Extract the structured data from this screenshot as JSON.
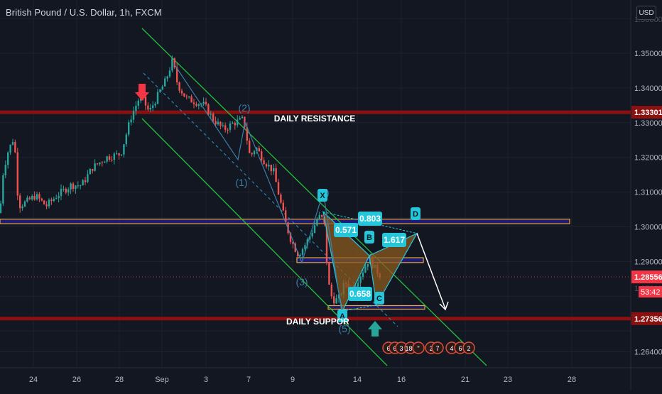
{
  "symbol_title": "British Pound / U.S. Dollar, 1h, FXCM",
  "currency": "USD",
  "colors": {
    "background": "#131722",
    "up": "#26a69a",
    "down": "#ef5350",
    "resistance_line": "#8b1111",
    "channel": "#21c33b",
    "pattern": "#26c6da",
    "zone_border": "#f0a830",
    "zone_fill": "#1d1d8a",
    "price_tag": "#f23645"
  },
  "chart_data": {
    "type": "candlestick",
    "y_axis": {
      "range": [
        1.2595,
        1.3595
      ],
      "scale": "linear",
      "tick_labels": [
        "1.35000",
        "1.34000",
        "1.33000",
        "1.32000",
        "1.31000",
        "1.30000",
        "1.29000",
        "1.26400"
      ],
      "partial_labels": [
        "1.36000",
        "1.27000",
        "1.28000"
      ]
    },
    "x_axis": {
      "tick_labels": [
        "24",
        "26",
        "28",
        "Sep",
        "3",
        "7",
        "9",
        "14",
        "16",
        "21",
        "23",
        "28"
      ]
    },
    "price_tags": [
      {
        "label": "1.33301",
        "value": 1.33301
      },
      {
        "label": "1.28556",
        "value": 1.28556,
        "sub": "53:42"
      },
      {
        "label": "1.27356",
        "value": 1.27356
      }
    ],
    "levels": [
      {
        "name": "DAILY RESISTANCE",
        "value": 1.33301
      },
      {
        "name": "DAILY SUPPORT",
        "value": 1.27356
      }
    ],
    "text_annotations": [
      {
        "text": "DAILY RESISTANCE"
      },
      {
        "text": "DAILY SUPPOR"
      }
    ],
    "wave_labels": [
      "(1)",
      "(2)",
      "(3)",
      "(4)",
      "(5)"
    ],
    "harmonic_points": [
      "X",
      "A",
      "B",
      "C",
      "D"
    ],
    "ratios": [
      "0.571",
      "0.803",
      "0.658",
      "1.617"
    ],
    "event_badges": [
      "6",
      "6",
      "3",
      "185",
      "\"",
      "2",
      "7",
      "4",
      "6",
      "2"
    ],
    "zones": [
      {
        "name": "resistance-zone",
        "from": 1.3009,
        "to": 1.3022
      },
      {
        "name": "mid-zone",
        "from": 1.2897,
        "to": 1.2911
      },
      {
        "name": "support-zone",
        "from": 1.2765,
        "to": 1.2773
      }
    ],
    "candle_path": [
      [
        0,
        1.304
      ],
      [
        4,
        1.315
      ],
      [
        10,
        1.321
      ],
      [
        20,
        1.326
      ],
      [
        26,
        1.306
      ],
      [
        36,
        1.307
      ],
      [
        50,
        1.309
      ],
      [
        65,
        1.306
      ],
      [
        80,
        1.309
      ],
      [
        100,
        1.312
      ],
      [
        115,
        1.312
      ],
      [
        130,
        1.317
      ],
      [
        150,
        1.32
      ],
      [
        170,
        1.321
      ],
      [
        185,
        1.332
      ],
      [
        198,
        1.338
      ],
      [
        210,
        1.333
      ],
      [
        220,
        1.337
      ],
      [
        233,
        1.342
      ],
      [
        243,
        1.348
      ],
      [
        250,
        1.341
      ],
      [
        262,
        1.337
      ],
      [
        275,
        1.336
      ],
      [
        288,
        1.335
      ],
      [
        300,
        1.331
      ],
      [
        315,
        1.328
      ],
      [
        330,
        1.33
      ],
      [
        343,
        1.331
      ],
      [
        352,
        1.32
      ],
      [
        360,
        1.323
      ],
      [
        372,
        1.319
      ],
      [
        385,
        1.316
      ],
      [
        395,
        1.307
      ],
      [
        402,
        1.301
      ],
      [
        410,
        1.296
      ],
      [
        420,
        1.292
      ],
      [
        430,
        1.295
      ],
      [
        438,
        1.298
      ],
      [
        448,
        1.303
      ],
      [
        456,
        1.302
      ],
      [
        462,
        1.284
      ],
      [
        468,
        1.279
      ],
      [
        476,
        1.279
      ],
      [
        486,
        1.284
      ],
      [
        496,
        1.282
      ],
      [
        510,
        1.287
      ],
      [
        520,
        1.291
      ],
      [
        528,
        1.288
      ],
      [
        537,
        1.2856
      ]
    ]
  }
}
